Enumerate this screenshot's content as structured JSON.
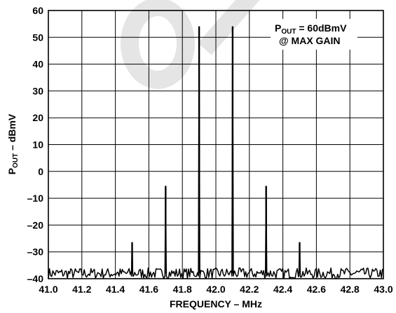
{
  "chart_data": {
    "type": "line",
    "title": "",
    "xlabel": "FREQUENCY – MHz",
    "ylabel_main": "P",
    "ylabel_sub": "OUT",
    "ylabel_rest": " – dBmV",
    "xlim": [
      41.0,
      43.0
    ],
    "ylim": [
      -40,
      60
    ],
    "x_ticks": [
      "41.0",
      "41.2",
      "41.4",
      "41.6",
      "41.8",
      "42.0",
      "42.2",
      "42.4",
      "42.6",
      "42.8",
      "43.0"
    ],
    "y_ticks": [
      "60",
      "50",
      "40",
      "30",
      "20",
      "10",
      "0",
      "–10",
      "–20",
      "–30",
      "–40"
    ],
    "grid": true,
    "noise_floor_dbmv": -38,
    "series": [
      {
        "x": [
          41.5,
          41.7,
          41.9,
          42.1,
          42.3,
          42.5
        ],
        "y": [
          -26.5,
          -5.5,
          54,
          54,
          -5.5,
          -26.5
        ]
      }
    ],
    "annotation": {
      "line1_main": "P",
      "line1_sub": "OUT",
      "line1_rest": " = 60dBmV",
      "line2": "@ MAX GAIN"
    },
    "watermark_shape": "large gray O and diagonal stroke"
  }
}
